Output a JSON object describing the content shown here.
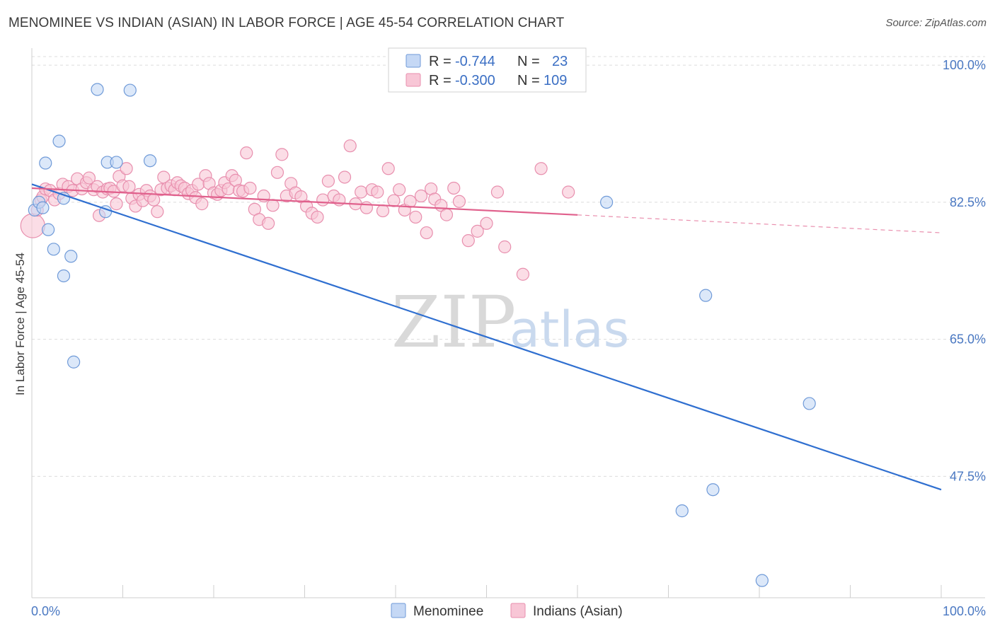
{
  "header": {
    "title": "MENOMINEE VS INDIAN (ASIAN) IN LABOR FORCE | AGE 45-54 CORRELATION CHART",
    "source": "Source: ZipAtlas.com"
  },
  "watermark": {
    "zip": "ZIP",
    "atlas": "atlas"
  },
  "chart_data": {
    "type": "scatter",
    "xlabel": "",
    "ylabel": "In Labor Force | Age 45-54",
    "xlim": [
      0,
      100
    ],
    "ylim": [
      32,
      102
    ],
    "x_tick_labels": {
      "left": "0.0%",
      "right": "100.0%"
    },
    "y_ticks": [
      {
        "value": 100.0,
        "label": "100.0%"
      },
      {
        "value": 82.5,
        "label": "82.5%"
      },
      {
        "value": 65.0,
        "label": "65.0%"
      },
      {
        "value": 47.5,
        "label": "47.5%"
      }
    ],
    "legend": {
      "rows": [
        {
          "r_label": "R =",
          "r_value": "-0.744",
          "n_label": "N =",
          "n_value": "23"
        },
        {
          "r_label": "R =",
          "r_value": "-0.300",
          "n_label": "N =",
          "n_value": "109"
        }
      ]
    },
    "colors": {
      "menominee_fill": "#c5d8f5",
      "menominee_stroke": "#6f9ad8",
      "menominee_line": "#2f6fd0",
      "indian_fill": "#f8c6d6",
      "indian_stroke": "#e88fae",
      "indian_line": "#e0608c"
    },
    "series": [
      {
        "name": "Menominee",
        "trend": {
          "x0": 0,
          "y0": 84.8,
          "x1": 100,
          "y1": 45.8,
          "dashed_from": null
        },
        "points": [
          [
            0.3,
            81.5
          ],
          [
            0.8,
            82.5
          ],
          [
            1.2,
            81.8
          ],
          [
            1.5,
            87.5
          ],
          [
            3.0,
            90.3
          ],
          [
            1.8,
            79.0
          ],
          [
            2.4,
            76.5
          ],
          [
            3.5,
            83.0
          ],
          [
            4.3,
            75.6
          ],
          [
            3.5,
            73.1
          ],
          [
            4.6,
            62.1
          ],
          [
            7.2,
            96.9
          ],
          [
            8.3,
            87.6
          ],
          [
            9.3,
            87.6
          ],
          [
            10.8,
            96.8
          ],
          [
            13.0,
            87.8
          ],
          [
            8.1,
            81.3
          ],
          [
            63.2,
            82.5
          ],
          [
            74.1,
            70.6
          ],
          [
            85.5,
            56.8
          ],
          [
            74.9,
            45.8
          ],
          [
            71.5,
            43.1
          ],
          [
            80.3,
            34.2
          ]
        ]
      },
      {
        "name": "Indians (Asian)",
        "trend": {
          "x0": 0,
          "y0": 84.3,
          "x1": 100,
          "y1": 78.6,
          "dashed_from": 60
        },
        "points": [
          [
            0.1,
            79.5
          ],
          [
            0.6,
            81.5
          ],
          [
            1.0,
            82.8
          ],
          [
            1.2,
            83.2
          ],
          [
            1.5,
            84.2
          ],
          [
            2.0,
            84.0
          ],
          [
            2.5,
            82.8
          ],
          [
            3.0,
            83.6
          ],
          [
            3.4,
            84.8
          ],
          [
            4.0,
            84.5
          ],
          [
            4.5,
            84.0
          ],
          [
            5.0,
            85.5
          ],
          [
            5.5,
            84.2
          ],
          [
            6.0,
            85.0
          ],
          [
            6.3,
            85.6
          ],
          [
            6.8,
            84.1
          ],
          [
            7.2,
            84.5
          ],
          [
            7.4,
            80.8
          ],
          [
            7.8,
            83.8
          ],
          [
            8.3,
            84.2
          ],
          [
            8.6,
            84.3
          ],
          [
            9.0,
            83.9
          ],
          [
            9.3,
            82.3
          ],
          [
            9.6,
            85.8
          ],
          [
            10.0,
            84.6
          ],
          [
            10.4,
            86.8
          ],
          [
            10.7,
            84.5
          ],
          [
            11.0,
            83.0
          ],
          [
            11.4,
            82.0
          ],
          [
            11.8,
            83.5
          ],
          [
            12.2,
            82.7
          ],
          [
            12.6,
            84.0
          ],
          [
            13.0,
            83.3
          ],
          [
            13.4,
            82.8
          ],
          [
            13.8,
            81.3
          ],
          [
            14.2,
            84.1
          ],
          [
            14.5,
            85.7
          ],
          [
            14.9,
            84.3
          ],
          [
            15.3,
            84.6
          ],
          [
            15.7,
            84.1
          ],
          [
            16.0,
            85.0
          ],
          [
            16.4,
            84.6
          ],
          [
            16.8,
            84.3
          ],
          [
            17.2,
            83.6
          ],
          [
            17.6,
            84.0
          ],
          [
            18.0,
            83.1
          ],
          [
            18.3,
            84.8
          ],
          [
            18.7,
            82.3
          ],
          [
            19.1,
            85.9
          ],
          [
            19.5,
            84.9
          ],
          [
            20.0,
            83.7
          ],
          [
            20.4,
            83.5
          ],
          [
            20.8,
            84.0
          ],
          [
            21.2,
            85.0
          ],
          [
            21.6,
            84.2
          ],
          [
            22.0,
            85.9
          ],
          [
            22.4,
            85.3
          ],
          [
            22.8,
            84.0
          ],
          [
            23.2,
            83.9
          ],
          [
            23.6,
            88.8
          ],
          [
            24.0,
            84.3
          ],
          [
            24.5,
            81.6
          ],
          [
            25.0,
            80.3
          ],
          [
            25.5,
            83.3
          ],
          [
            26.0,
            79.8
          ],
          [
            26.5,
            82.1
          ],
          [
            27.0,
            86.3
          ],
          [
            27.5,
            88.6
          ],
          [
            28.0,
            83.3
          ],
          [
            28.5,
            84.9
          ],
          [
            29.0,
            83.7
          ],
          [
            29.6,
            83.2
          ],
          [
            30.2,
            82.0
          ],
          [
            30.8,
            81.1
          ],
          [
            31.4,
            80.6
          ],
          [
            32.0,
            82.8
          ],
          [
            32.6,
            85.2
          ],
          [
            33.2,
            83.3
          ],
          [
            33.8,
            82.8
          ],
          [
            34.4,
            85.7
          ],
          [
            35.0,
            89.7
          ],
          [
            35.6,
            82.3
          ],
          [
            36.2,
            83.8
          ],
          [
            36.8,
            81.8
          ],
          [
            37.4,
            84.1
          ],
          [
            38.0,
            83.8
          ],
          [
            38.6,
            81.4
          ],
          [
            39.2,
            86.8
          ],
          [
            39.8,
            82.7
          ],
          [
            40.4,
            84.1
          ],
          [
            41.0,
            81.5
          ],
          [
            41.6,
            82.6
          ],
          [
            42.2,
            80.6
          ],
          [
            42.8,
            83.3
          ],
          [
            43.4,
            78.6
          ],
          [
            43.9,
            84.2
          ],
          [
            44.3,
            82.9
          ],
          [
            45.0,
            82.1
          ],
          [
            45.6,
            80.9
          ],
          [
            46.4,
            84.3
          ],
          [
            47.0,
            82.6
          ],
          [
            48.0,
            77.6
          ],
          [
            49.0,
            78.8
          ],
          [
            50.0,
            79.8
          ],
          [
            51.2,
            83.8
          ],
          [
            52.0,
            76.8
          ],
          [
            54.0,
            73.3
          ],
          [
            56.0,
            86.8
          ],
          [
            59.0,
            83.8
          ]
        ]
      }
    ],
    "bottom_legend": [
      "Menominee",
      "Indians (Asian)"
    ]
  }
}
